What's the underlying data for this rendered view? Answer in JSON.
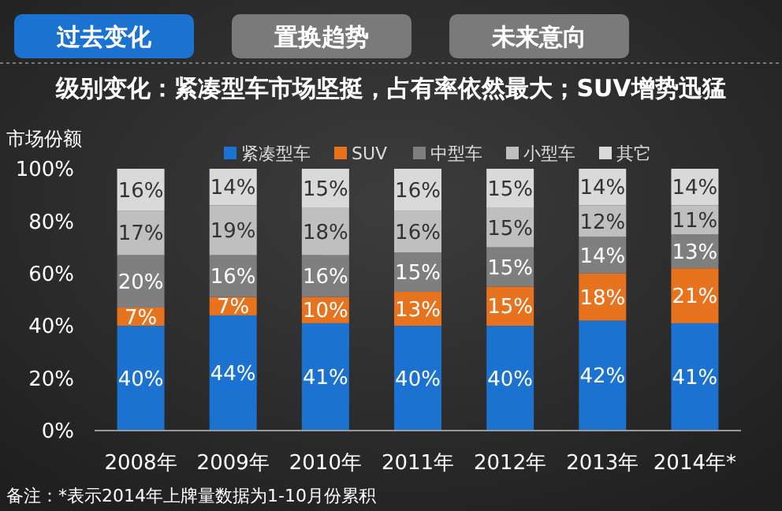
{
  "chart_data": {
    "type": "bar",
    "stacked": true,
    "title": "级别变化：紧凑型车市场坚挺，占有率依然最大；SUV增势迅猛",
    "ylabel": "市场份额",
    "annotations": [
      "过去变化",
      "置换趋势",
      "未来意向",
      "备注：*表示2014年上牌量数据为1-10月份累积"
    ],
    "categories": [
      "2008年",
      "2009年",
      "2010年",
      "2011年",
      "2012年",
      "2013年",
      "2014年*"
    ],
    "ylim": [
      0,
      100
    ],
    "yticks": [
      {
        "value": 0,
        "label": "0%"
      },
      {
        "value": 20,
        "label": "20%"
      },
      {
        "value": 40,
        "label": "40%"
      },
      {
        "value": 60,
        "label": "60%"
      },
      {
        "value": 80,
        "label": "80%"
      },
      {
        "value": 100,
        "label": "100%"
      }
    ],
    "grid": false,
    "legend": "top",
    "series": [
      {
        "name": "紧凑型车",
        "color": "#1b72d0",
        "values": [
          40,
          44,
          41,
          40,
          40,
          42,
          41
        ],
        "value_labels": [
          "40%",
          "44%",
          "41%",
          "40%",
          "40%",
          "42%",
          "41%"
        ]
      },
      {
        "name": "SUV",
        "color": "#e8731f",
        "values": [
          7,
          7,
          10,
          13,
          15,
          18,
          21
        ],
        "value_labels": [
          "7%",
          "7%",
          "10%",
          "13%",
          "15%",
          "18%",
          "21%"
        ]
      },
      {
        "name": "中型车",
        "color": "#7f7f7f",
        "values": [
          20,
          16,
          16,
          15,
          15,
          14,
          13
        ],
        "value_labels": [
          "20%",
          "16%",
          "16%",
          "15%",
          "15%",
          "14%",
          "13%"
        ]
      },
      {
        "name": "小型车",
        "color": "#bfbfbf",
        "values": [
          17,
          19,
          18,
          16,
          15,
          12,
          11
        ],
        "value_labels": [
          "17%",
          "19%",
          "18%",
          "16%",
          "15%",
          "12%",
          "11%"
        ]
      },
      {
        "name": "其它",
        "color": "#d9d9d9",
        "values": [
          16,
          14,
          15,
          16,
          15,
          14,
          14
        ],
        "value_labels": [
          "16%",
          "14%",
          "15%",
          "16%",
          "15%",
          "14%",
          "14%"
        ]
      }
    ]
  }
}
